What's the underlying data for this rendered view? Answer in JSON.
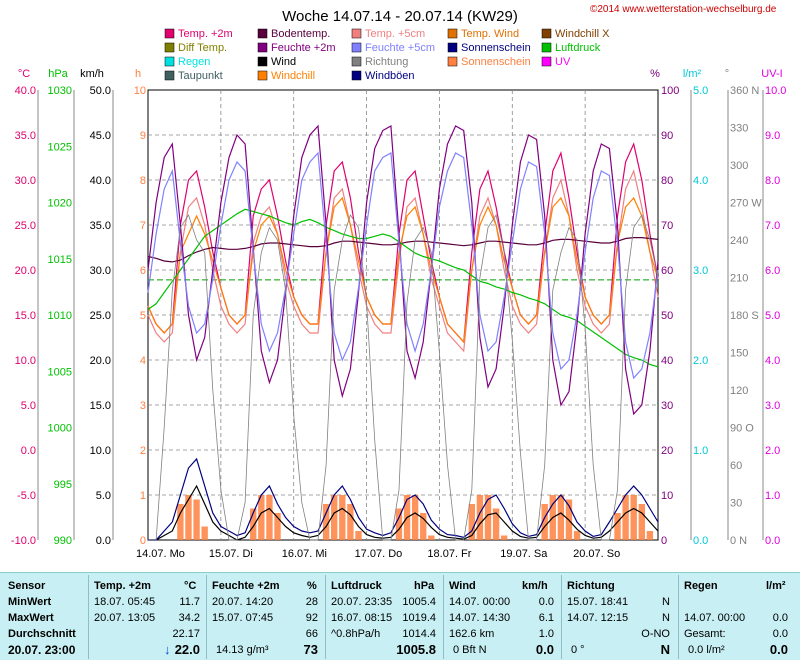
{
  "header": {
    "title": "Woche 14.07.14 - 20.07.14 (KW29)",
    "credit": "©2014 www.wetterstation-wechselburg.de"
  },
  "legend": [
    {
      "label": "Temp. +2m",
      "color": "#e0006e"
    },
    {
      "label": "Bodentemp.",
      "color": "#5a003c"
    },
    {
      "label": "Temp. +5cm",
      "color": "#f08080"
    },
    {
      "label": "Temp. Wind",
      "color": "#e07000"
    },
    {
      "label": "Windchill X",
      "color": "#804000"
    },
    {
      "label": "Diff Temp.",
      "color": "#808000"
    },
    {
      "label": "Feuchte +2m",
      "color": "#800080"
    },
    {
      "label": "Feuchte +5cm",
      "color": "#8080ff"
    },
    {
      "label": "Sonnenschein",
      "color": "#000080"
    },
    {
      "label": "Luftdruck",
      "color": "#00c000"
    },
    {
      "label": "Regen",
      "color": "#00e0e0"
    },
    {
      "label": "Wind",
      "color": "#000000"
    },
    {
      "label": "Richtung",
      "color": "#808080"
    },
    {
      "label": "Sonnenschein",
      "color": "#ff8040"
    },
    {
      "label": "UV",
      "color": "#ff00ff"
    },
    {
      "label": "Taupunkt",
      "color": "#406060"
    },
    {
      "label": "Windchill",
      "color": "#ff8000"
    },
    {
      "label": "Windböen",
      "color": "#000080"
    }
  ],
  "chart_data": {
    "type": "line",
    "title": "Woche 14.07.14 - 20.07.14 (KW29)",
    "x_labels": [
      "14.07. Mo",
      "15.07. Di",
      "16.07. Mi",
      "17.07. Do",
      "18.07. Fr",
      "19.07. Sa",
      "20.07. So"
    ],
    "axes": [
      {
        "unit": "°C",
        "color": "#e0006e",
        "ticks": [
          "40.0",
          "35.0",
          "30.0",
          "25.0",
          "20.0",
          "15.0",
          "10.0",
          "5.0",
          "0.0",
          "-5.0",
          "-10.0"
        ],
        "range": [
          -10,
          40
        ]
      },
      {
        "unit": "hPa",
        "color": "#00c000",
        "ticks": [
          "1030",
          "1025",
          "1020",
          "1015",
          "1010",
          "1005",
          "1000",
          "995",
          "990"
        ],
        "range": [
          990,
          1030
        ]
      },
      {
        "unit": "km/h",
        "color": "#000000",
        "ticks": [
          "50.0",
          "45.0",
          "40.0",
          "35.0",
          "30.0",
          "25.0",
          "20.0",
          "15.0",
          "10.0",
          "5.0",
          "0.0"
        ],
        "range": [
          0,
          50
        ]
      },
      {
        "unit": "h",
        "color": "#ff8040",
        "ticks": [
          "10",
          "9",
          "8",
          "7",
          "6",
          "5",
          "4",
          "3",
          "2",
          "1",
          "0"
        ],
        "range": [
          0,
          10
        ]
      },
      {
        "unit": "%",
        "color": "#800080",
        "ticks": [
          "100",
          "90",
          "80",
          "70",
          "60",
          "50",
          "40",
          "30",
          "20",
          "10",
          "0"
        ],
        "range": [
          0,
          100
        ]
      },
      {
        "unit": "l/m²",
        "color": "#00c8d8",
        "ticks": [
          "5.0",
          "4.0",
          "3.0",
          "2.0",
          "1.0",
          "0.0"
        ],
        "range": [
          0,
          5
        ]
      },
      {
        "unit": "°",
        "color": "#808080",
        "ticks": [
          "360 N",
          "330",
          "300",
          "270 W",
          "240",
          "210",
          "180 S",
          "150",
          "120",
          "90 O",
          "60",
          "30",
          "0 N"
        ],
        "range": [
          0,
          360
        ]
      },
      {
        "unit": "UV-I",
        "color": "#e000e0",
        "ticks": [
          "10.0",
          "9.0",
          "8.0",
          "7.0",
          "6.0",
          "5.0",
          "4.0",
          "3.0",
          "2.0",
          "1.0",
          "0.0"
        ],
        "range": [
          0,
          10
        ]
      }
    ],
    "reference_line_celsius": 18.9,
    "series": [
      {
        "name": "Temp. +2m",
        "color": "#e0006e",
        "min": 11.7,
        "max": 34.2,
        "points": [
          16,
          14,
          13,
          14,
          25,
          30,
          31,
          27,
          22,
          18,
          15,
          14,
          15,
          26,
          29,
          30,
          26,
          21,
          17,
          15,
          14,
          14,
          25,
          31,
          32,
          28,
          22,
          17,
          15,
          14,
          14,
          24,
          30,
          31,
          26,
          21,
          17,
          14,
          13,
          12,
          22,
          29,
          31,
          27,
          22,
          18,
          15,
          14,
          15,
          24,
          31,
          33,
          28,
          22,
          17,
          15,
          14,
          15,
          26,
          32,
          34,
          30,
          24,
          19
        ]
      },
      {
        "name": "Temp. +5cm",
        "color": "#f08080",
        "points": [
          15,
          13,
          12,
          13,
          22,
          27,
          28,
          25,
          20,
          16,
          14,
          13,
          14,
          23,
          26,
          27,
          24,
          19,
          16,
          14,
          13,
          13,
          22,
          28,
          29,
          25,
          20,
          16,
          14,
          13,
          13,
          21,
          27,
          28,
          24,
          19,
          16,
          13,
          12,
          11,
          20,
          26,
          28,
          25,
          20,
          16,
          14,
          13,
          14,
          22,
          28,
          30,
          26,
          20,
          16,
          14,
          13,
          14,
          23,
          29,
          31,
          27,
          22,
          17
        ]
      },
      {
        "name": "Windchill",
        "color": "#ff8000",
        "points": [
          16,
          14,
          13,
          14,
          22,
          24,
          26,
          24,
          21,
          18,
          15,
          14,
          15,
          22,
          25,
          26,
          24,
          20,
          17,
          15,
          14,
          14,
          22,
          27,
          28,
          25,
          21,
          17,
          15,
          14,
          14,
          22,
          26,
          27,
          24,
          20,
          17,
          14,
          13,
          12,
          20,
          25,
          27,
          25,
          21,
          18,
          15,
          14,
          15,
          22,
          27,
          28,
          26,
          21,
          17,
          15,
          14,
          15,
          23,
          27,
          28,
          26,
          22,
          19
        ]
      },
      {
        "name": "Bodentemp.",
        "color": "#5a003c",
        "points": [
          21.5,
          21.3,
          21.0,
          20.9,
          21.1,
          21.6,
          22.0,
          22.3,
          22.5,
          22.4,
          22.3,
          22.3,
          22.4,
          22.6,
          22.9,
          23.0,
          23.0,
          22.9,
          22.8,
          22.7,
          22.6,
          22.6,
          22.7,
          23.0,
          23.2,
          23.2,
          23.1,
          23.0,
          22.9,
          22.8,
          22.8,
          22.9,
          23.1,
          23.2,
          23.2,
          23.1,
          23.0,
          22.9,
          22.8,
          22.7,
          22.8,
          23.0,
          23.2,
          23.2,
          23.1,
          23.0,
          22.9,
          22.8,
          22.8,
          23.0,
          23.3,
          23.4,
          23.4,
          23.3,
          23.2,
          23.1,
          23.0,
          23.0,
          23.2,
          23.5,
          23.6,
          23.6,
          23.5,
          23.4
        ]
      },
      {
        "name": "Luftdruck",
        "color": "#00c000",
        "unit": "hPa",
        "min": 1005.4,
        "max": 1019.4,
        "points": [
          1010.5,
          1011,
          1012,
          1013,
          1014,
          1015,
          1016,
          1017,
          1017.5,
          1018,
          1018.5,
          1019,
          1019.4,
          1019.2,
          1019,
          1018.8,
          1018.5,
          1018.2,
          1018,
          1018.3,
          1018.5,
          1018.2,
          1017.8,
          1017.5,
          1017.2,
          1017,
          1016.8,
          1016.8,
          1017,
          1017.2,
          1017,
          1016.5,
          1016,
          1015.5,
          1015.2,
          1015,
          1014.8,
          1014.5,
          1014.2,
          1014,
          1013.5,
          1013,
          1012.8,
          1012.5,
          1012.3,
          1012,
          1011.8,
          1011.5,
          1011.3,
          1011,
          1010.5,
          1010,
          1009.8,
          1009.5,
          1009,
          1008.5,
          1008,
          1007.5,
          1007,
          1006.5,
          1006.2,
          1006,
          1005.6,
          1005.4
        ]
      },
      {
        "name": "Feuchte +2m",
        "color": "#800080",
        "unit": "%",
        "min": 28,
        "max": 92,
        "points": [
          60,
          75,
          85,
          88,
          70,
          50,
          40,
          45,
          60,
          75,
          85,
          90,
          88,
          65,
          42,
          35,
          40,
          55,
          72,
          85,
          90,
          92,
          70,
          40,
          32,
          38,
          55,
          75,
          87,
          91,
          92,
          68,
          42,
          36,
          44,
          60,
          78,
          88,
          92,
          91,
          75,
          45,
          34,
          38,
          52,
          70,
          84,
          90,
          89,
          72,
          40,
          30,
          33,
          48,
          68,
          82,
          88,
          87,
          70,
          38,
          28,
          30,
          42,
          62
        ]
      },
      {
        "name": "Feuchte +5cm",
        "color": "#8080ff",
        "unit": "%",
        "points": [
          55,
          68,
          78,
          82,
          66,
          52,
          46,
          48,
          58,
          70,
          80,
          84,
          82,
          64,
          48,
          42,
          46,
          56,
          68,
          80,
          84,
          86,
          66,
          46,
          40,
          44,
          56,
          70,
          82,
          85,
          86,
          66,
          48,
          42,
          48,
          60,
          74,
          82,
          86,
          85,
          70,
          50,
          42,
          44,
          54,
          66,
          78,
          84,
          83,
          68,
          46,
          38,
          40,
          50,
          64,
          76,
          82,
          81,
          66,
          44,
          36,
          38,
          46,
          60
        ]
      },
      {
        "name": "Sonnenschein",
        "color": "#ff8040",
        "unit": "h",
        "points": [
          0,
          0,
          0,
          0,
          0.8,
          1,
          0.9,
          0.3,
          0,
          0,
          0,
          0,
          0,
          0.7,
          1,
          1,
          0.6,
          0,
          0,
          0,
          0,
          0,
          0.8,
          1,
          1,
          0.8,
          0.2,
          0,
          0,
          0,
          0,
          0.7,
          1,
          1,
          0.6,
          0.1,
          0,
          0,
          0,
          0,
          0.8,
          1,
          1,
          0.7,
          0.1,
          0,
          0,
          0,
          0,
          0.8,
          1,
          1,
          0.9,
          0.2,
          0,
          0,
          0,
          0,
          0.6,
          1,
          1,
          0.8,
          0.2,
          0
        ]
      },
      {
        "name": "Wind",
        "color": "#000000",
        "unit": "km/h",
        "max": 6.1,
        "avg": 1.0,
        "points": [
          0,
          0,
          0.5,
          1,
          3,
          4.5,
          6,
          4,
          2,
          1,
          0.5,
          0,
          0.3,
          1.5,
          3,
          3.5,
          2.5,
          1.5,
          0.8,
          0.5,
          0.3,
          0.5,
          1.5,
          3,
          3.5,
          2.8,
          1.5,
          0.6,
          0.3,
          0.2,
          0.3,
          1.2,
          2.5,
          3,
          2.4,
          1.4,
          0.6,
          0.3,
          0.2,
          0.1,
          0.5,
          1.8,
          2.8,
          3,
          2,
          1,
          0.4,
          0.2,
          0.3,
          1.5,
          2.5,
          3,
          2.2,
          1.2,
          0.5,
          0.2,
          0.3,
          1,
          2,
          3,
          3.5,
          3,
          2,
          1
        ]
      },
      {
        "name": "Windböen",
        "color": "#000080",
        "unit": "km/h",
        "points": [
          0,
          0,
          1,
          2,
          5,
          8,
          9,
          6,
          3,
          1.5,
          1,
          0.5,
          0.8,
          3,
          5,
          6,
          4,
          2.5,
          1.5,
          1,
          0.8,
          1,
          3,
          5,
          6,
          4.5,
          2.5,
          1.2,
          0.8,
          0.5,
          0.8,
          2.5,
          4.5,
          5,
          4,
          2.2,
          1.2,
          0.6,
          0.5,
          0.3,
          1,
          3,
          4.5,
          5,
          3.5,
          1.8,
          0.8,
          0.4,
          0.6,
          2.5,
          4,
          5,
          3.8,
          2,
          1,
          0.4,
          0.6,
          2,
          3.5,
          5,
          6,
          5,
          3.5,
          2
        ]
      },
      {
        "name": "Richtung",
        "color": "#808080",
        "unit": "°",
        "points": [
          0,
          0,
          90,
          200,
          250,
          260,
          240,
          230,
          120,
          40,
          0,
          0,
          30,
          180,
          230,
          250,
          240,
          200,
          100,
          30,
          0,
          0,
          60,
          200,
          240,
          260,
          250,
          190,
          80,
          0,
          0,
          40,
          190,
          240,
          250,
          230,
          150,
          60,
          0,
          0,
          40,
          210,
          250,
          260,
          230,
          160,
          70,
          0,
          0,
          60,
          200,
          230,
          250,
          240,
          170,
          60,
          0,
          0,
          40,
          200,
          250,
          260,
          240,
          210
        ]
      }
    ]
  },
  "stats": {
    "headers": {
      "sensor": "Sensor",
      "temp": "Temp. +2m",
      "temp_unit": "°C",
      "feuchte": "Feuchte +2m",
      "feuchte_unit": "%",
      "luftdruck": "Luftdruck",
      "luftdruck_unit": "hPa",
      "wind": "Wind",
      "wind_unit": "km/h",
      "richtung": "Richtung",
      "regen": "Regen",
      "regen_unit": "l/m²"
    },
    "rows": [
      {
        "label": "MinWert",
        "temp_time": "18.07.  05:45",
        "temp_val": "11.7",
        "feu_time": "20.07.  14:20",
        "feu_val": "28",
        "luft_time": "20.07.  23:35",
        "luft_val": "1005.4",
        "wind_time": "14.07.  00:00",
        "wind_val": "0.0",
        "ri_time": "15.07.  18:41",
        "ri_val": "N",
        "re_time": "",
        "re_val": ""
      },
      {
        "label": "MaxWert",
        "temp_time": "20.07.  13:05",
        "temp_val": "34.2",
        "feu_time": "15.07.  07:45",
        "feu_val": "92",
        "luft_time": "16.07.  08:15",
        "luft_val": "1019.4",
        "wind_time": "14.07.  14:30",
        "wind_val": "6.1",
        "ri_time": "14.07.  12:15",
        "ri_val": "N",
        "re_time": "14.07.  00:00",
        "re_val": "0.0"
      },
      {
        "label": "Durchschnitt",
        "temp_time": "",
        "temp_val": "22.17",
        "feu_time": "",
        "feu_val": "66",
        "luft_time": "^0.8hPa/h",
        "luft_val": "1014.4",
        "wind_time": "162.6 km",
        "wind_val": "1.0",
        "ri_time": "",
        "ri_val": "O-NO",
        "re_time": "Gesamt:",
        "re_val": "0.0"
      }
    ],
    "current": {
      "label": "20.07.  23:00",
      "temp_arrow": "↓",
      "temp": "22.0",
      "abs_humidity": "14.13 g/m³",
      "feuchte": "73",
      "luftdruck": "1005.8",
      "wind_bft": "0 Bft N",
      "wind": "0.0",
      "richtung_deg": "0 °",
      "richtung": "N",
      "regen_rate": "0.0 l/m²",
      "regen": "0.0"
    }
  }
}
